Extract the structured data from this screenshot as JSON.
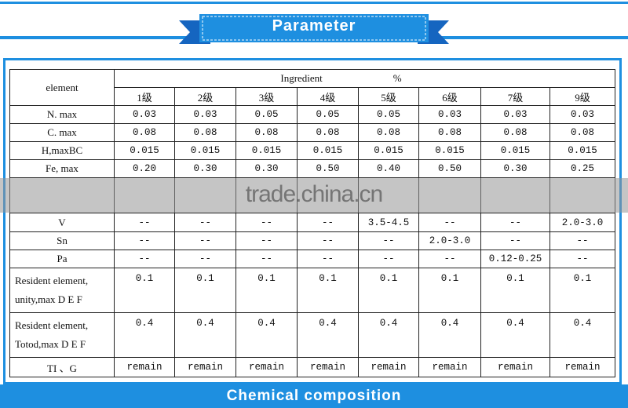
{
  "header": {
    "title": "Parameter"
  },
  "table": {
    "element_header": "element",
    "ingredient_header": "Ingredient",
    "unit": "%",
    "grades": [
      "1级",
      "2级",
      "3级",
      "4级",
      "5级",
      "6级",
      "7级",
      "9级"
    ],
    "rows": [
      {
        "label": [
          "N. max"
        ],
        "values": [
          "0.03",
          "0.03",
          "0.05",
          "0.05",
          "0.05",
          "0.03",
          "0.03",
          "0.03"
        ]
      },
      {
        "label": [
          "C. max"
        ],
        "values": [
          "0.08",
          "0.08",
          "0.08",
          "0.08",
          "0.08",
          "0.08",
          "0.08",
          "0.08"
        ]
      },
      {
        "label": [
          "H,maxBC"
        ],
        "values": [
          "0.015",
          "0.015",
          "0.015",
          "0.015",
          "0.015",
          "0.015",
          "0.015",
          "0.015"
        ]
      },
      {
        "label": [
          "Fe, max"
        ],
        "values": [
          "0.20",
          "0.30",
          "0.30",
          "0.50",
          "0.40",
          "0.50",
          "0.30",
          "0.25"
        ]
      },
      {
        "label": [
          "V"
        ],
        "values": [
          "--",
          "--",
          "--",
          "--",
          "3.5-4.5",
          "--",
          "--",
          "2.0-3.0"
        ]
      },
      {
        "label": [
          "Sn"
        ],
        "values": [
          "--",
          "--",
          "--",
          "--",
          "--",
          "2.0-3.0",
          "--",
          "--"
        ]
      },
      {
        "label": [
          "Pa"
        ],
        "values": [
          "--",
          "--",
          "--",
          "--",
          "--",
          "--",
          "0.12-0.25",
          "--"
        ]
      },
      {
        "label": [
          "Resident element,",
          "unity,max D E F"
        ],
        "values": [
          "0.1",
          "0.1",
          "0.1",
          "0.1",
          "0.1",
          "0.1",
          "0.1",
          "0.1"
        ]
      },
      {
        "label": [
          "Resident element,",
          "Totod,max D E F"
        ],
        "values": [
          "0.4",
          "0.4",
          "0.4",
          "0.4",
          "0.4",
          "0.4",
          "0.4",
          "0.4"
        ]
      },
      {
        "label": [
          "TI 、G"
        ],
        "values": [
          "remain",
          "remain",
          "remain",
          "remain",
          "remain",
          "remain",
          "remain",
          "remain"
        ]
      }
    ]
  },
  "watermark": "trade.china.cn",
  "footer": {
    "title": "Chemical composition"
  }
}
